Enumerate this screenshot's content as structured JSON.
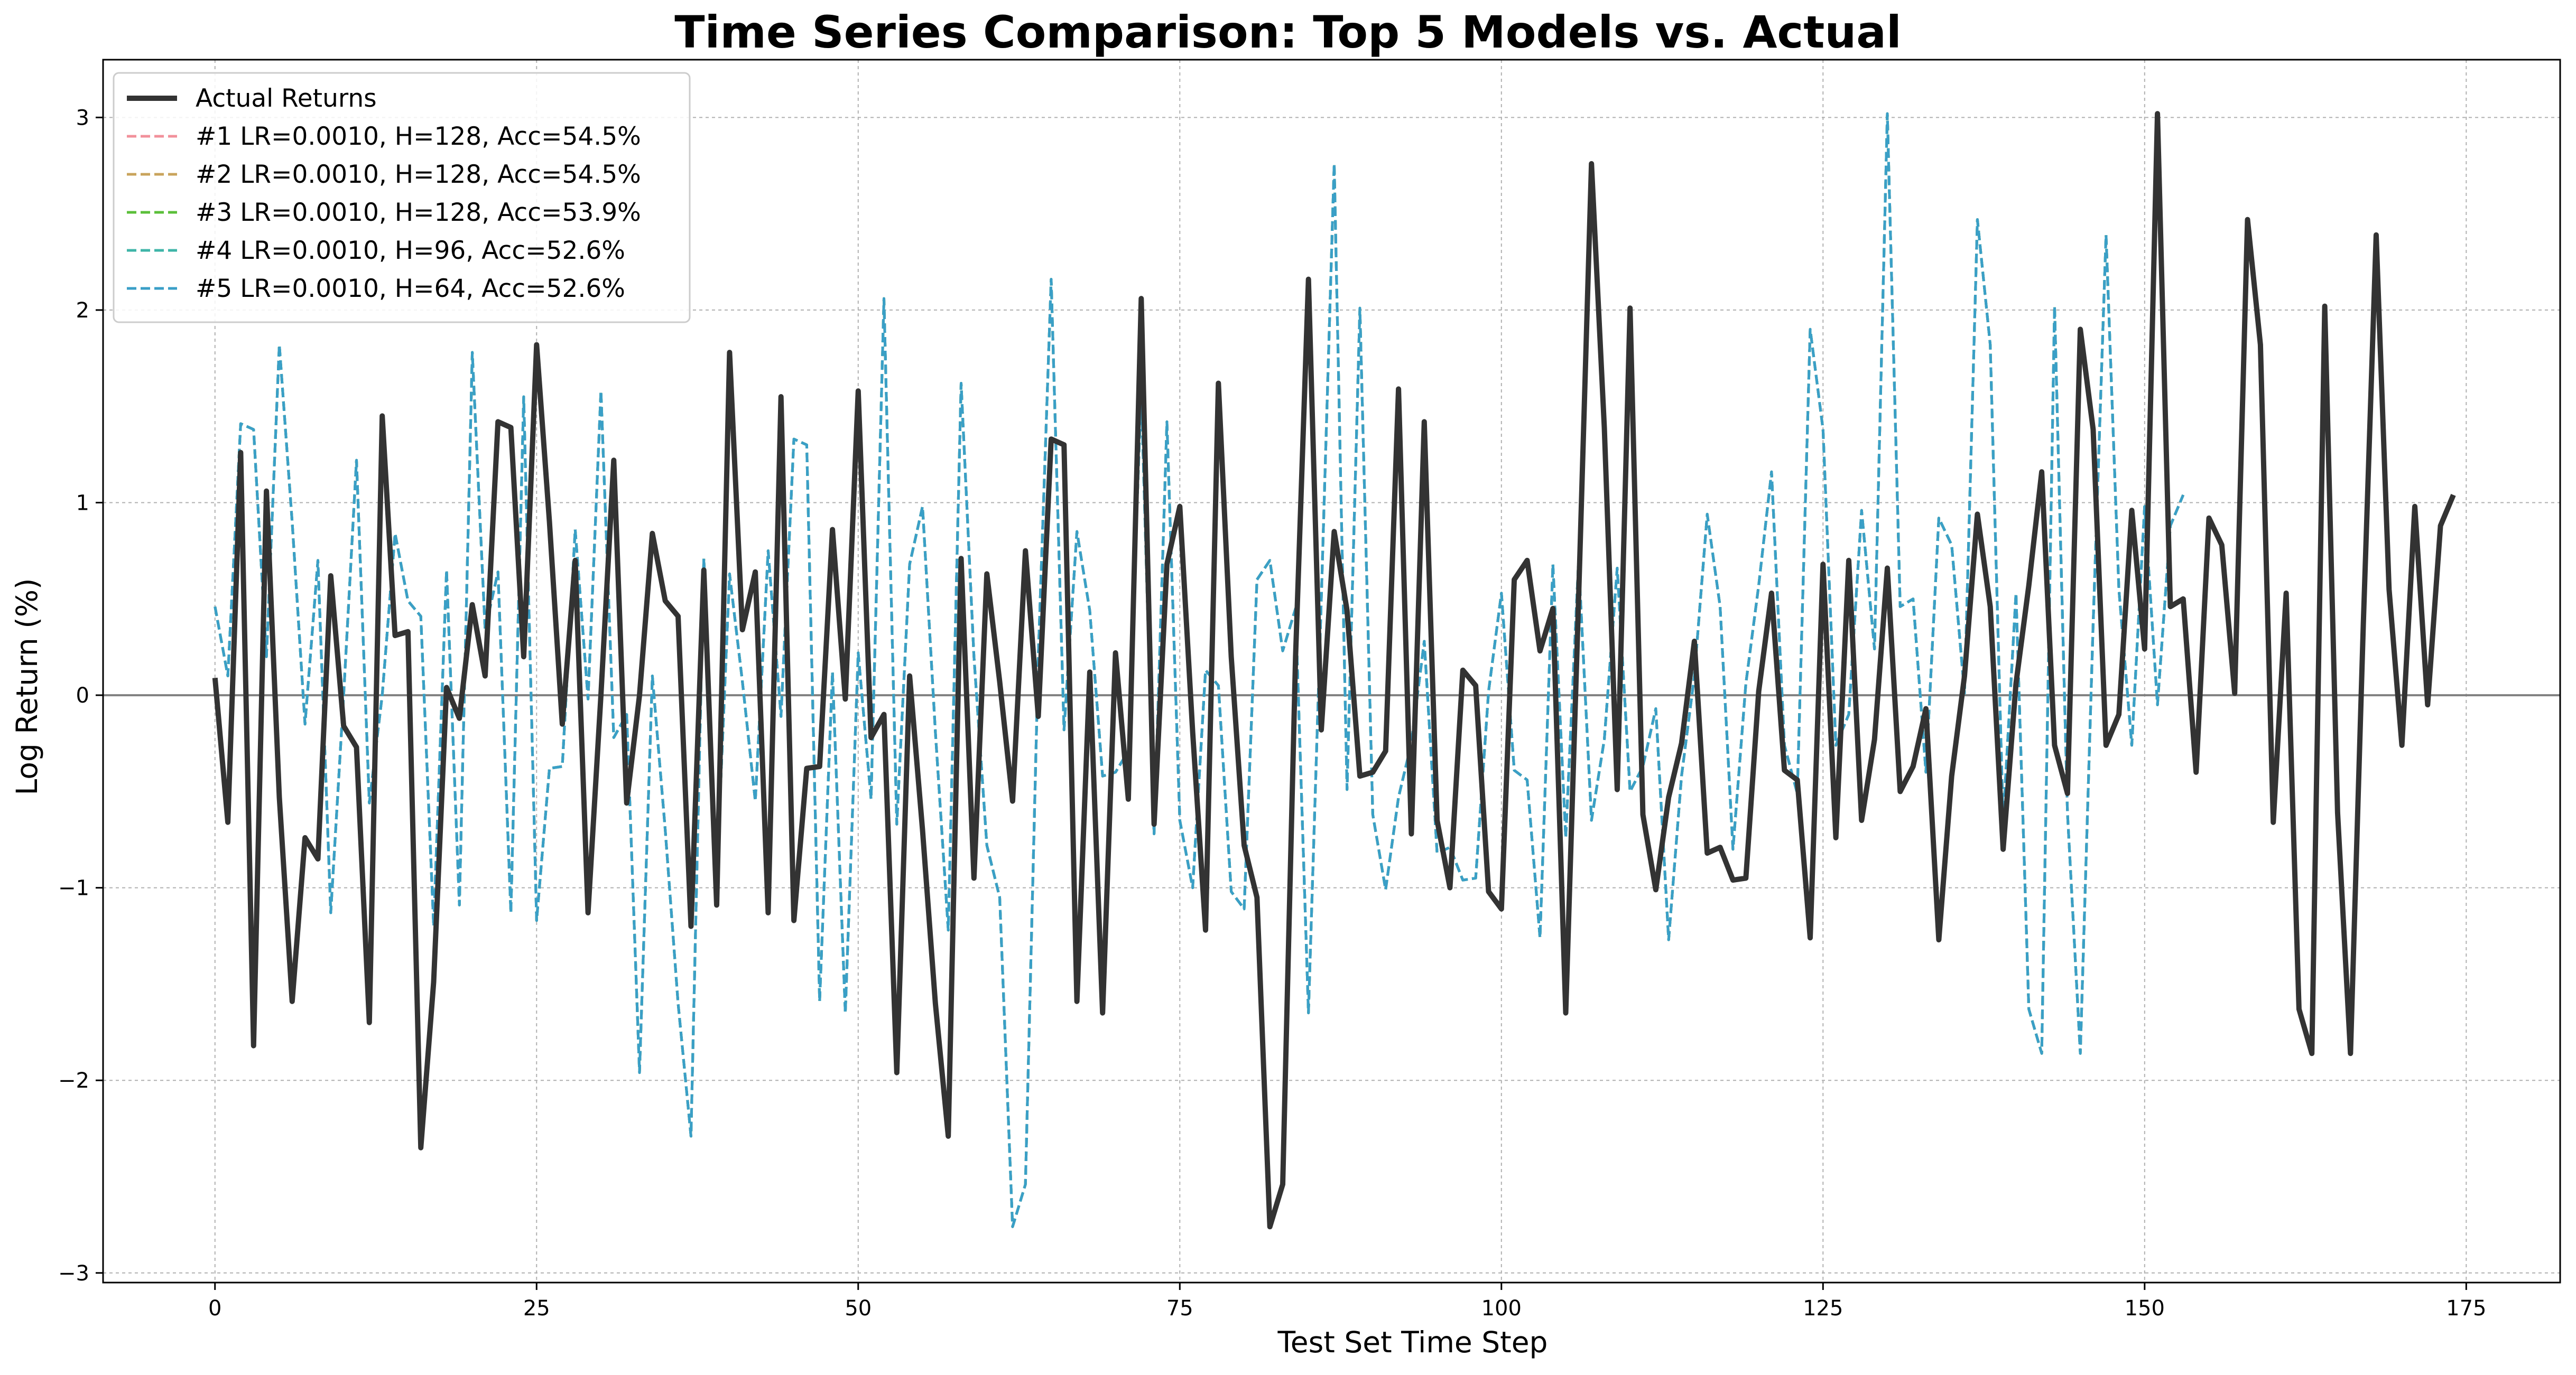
{
  "chart_data": {
    "type": "line",
    "title": "Time Series Comparison: Top 5 Models vs. Actual",
    "xlabel": "Test Set Time Step",
    "ylabel": "Log Return (%)",
    "xlim": [
      -8.7,
      182.3
    ],
    "ylim": [
      -3.05,
      3.3
    ],
    "xticks": [
      0,
      25,
      50,
      75,
      100,
      125,
      150,
      175
    ],
    "yticks": [
      -3,
      -2,
      -1,
      0,
      1,
      2,
      3
    ],
    "ytick_labels": [
      "−3",
      "−2",
      "−1",
      "0",
      "1",
      "2",
      "3"
    ],
    "grid": true,
    "zero_line": true,
    "legend_position": "top-left",
    "series": [
      {
        "name": "Actual Returns",
        "style": "solid",
        "color": "#333333",
        "x_start": 0,
        "values": [
          0.09,
          -0.66,
          1.26,
          -1.82,
          1.06,
          -0.53,
          -1.59,
          -0.74,
          -0.85,
          0.62,
          -0.16,
          -0.27,
          -1.7,
          1.45,
          0.31,
          0.33,
          -2.35,
          -1.49,
          0.04,
          -0.12,
          0.47,
          0.1,
          1.42,
          1.39,
          0.2,
          1.82,
          0.9,
          -0.15,
          0.7,
          -1.13,
          0.0,
          1.22,
          -0.56,
          0.0,
          0.84,
          0.49,
          0.41,
          -1.2,
          0.65,
          -1.09,
          1.78,
          0.34,
          0.64,
          -1.13,
          1.55,
          -1.17,
          -0.38,
          -0.37,
          0.86,
          -0.02,
          1.58,
          -0.22,
          -0.1,
          -1.96,
          0.1,
          -0.7,
          -1.6,
          -2.29,
          0.71,
          -0.95,
          0.63,
          0.07,
          -0.55,
          0.75,
          -0.11,
          1.33,
          1.3,
          -1.59,
          0.12,
          -1.65,
          0.22,
          -0.54,
          2.06,
          -0.67,
          0.68,
          0.98,
          -0.19,
          -1.22,
          1.62,
          0.2,
          -0.78,
          -1.05,
          -2.76,
          -2.54,
          0.2,
          2.16,
          -0.18,
          0.85,
          0.44,
          -0.42,
          -0.4,
          -0.29,
          1.59,
          -0.72,
          1.42,
          -0.65,
          -1.0,
          0.13,
          0.05,
          -1.02,
          -1.11,
          0.6,
          0.7,
          0.23,
          0.45,
          -1.65,
          0.5,
          2.76,
          1.39,
          -0.49,
          2.01,
          -0.62,
          -1.01,
          -0.53,
          -0.25,
          0.28,
          -0.82,
          -0.79,
          -0.96,
          -0.95,
          0.02,
          0.53,
          -0.39,
          -0.44,
          -1.26,
          0.68,
          -0.74,
          0.7,
          -0.65,
          -0.23,
          0.66,
          -0.5,
          -0.37,
          -0.07,
          -1.27,
          -0.42,
          0.1,
          0.94,
          0.46,
          -0.8,
          0.06,
          0.57,
          1.16,
          -0.26,
          -0.51,
          1.9,
          1.38,
          -0.26,
          -0.1,
          0.96,
          0.24,
          3.02,
          0.46,
          0.5,
          -0.4,
          0.92,
          0.78,
          0.01,
          2.47,
          1.82,
          -0.66,
          0.53,
          -1.63,
          -1.86,
          2.02,
          -0.61,
          -1.86,
          0.37,
          2.39,
          0.55,
          -0.26,
          0.98,
          -0.05,
          0.88,
          1.04
        ]
      },
      {
        "name": "#1 LR=0.0010, H=128, Acc=54.5%",
        "style": "dashed",
        "color": "#f2909b",
        "x_start": 0,
        "values": [
          0.46,
          0.1,
          1.41,
          1.38,
          0.2,
          1.82,
          0.9,
          -0.15,
          0.7,
          -1.13,
          0.0,
          1.22,
          -0.56,
          0.0,
          0.84,
          0.49,
          0.41,
          -1.2,
          0.65,
          -1.09,
          1.78,
          0.34,
          0.64,
          -1.13,
          1.55,
          -1.17,
          -0.38,
          -0.37,
          0.86,
          -0.02,
          1.58,
          -0.22,
          -0.1,
          -1.96,
          0.1,
          -0.7,
          -1.6,
          -2.29,
          0.71,
          -0.95,
          0.63,
          0.07,
          -0.55,
          0.75,
          -0.11,
          1.33,
          1.3,
          -1.59,
          0.12,
          -1.65,
          0.22,
          -0.54,
          2.06,
          -0.67,
          0.68,
          0.98,
          -0.19,
          -1.22,
          1.62,
          0.2,
          -0.78,
          -1.05,
          -2.76,
          -2.54,
          0.2,
          2.16,
          -0.18,
          0.85,
          0.44,
          -0.42,
          -0.4,
          -0.29,
          1.59,
          -0.72,
          1.42,
          -0.65,
          -1.0,
          0.13,
          0.05,
          -1.02,
          -1.11,
          0.6,
          0.7,
          0.23,
          0.45,
          -1.65,
          0.5,
          2.76,
          -0.49,
          2.01,
          -0.62,
          -1.01,
          -0.53,
          -0.25,
          0.28,
          -0.82,
          -0.79,
          -0.96,
          -0.95,
          0.02,
          0.53,
          -0.39,
          -0.44,
          -1.26,
          0.68,
          -0.74,
          0.7,
          -0.65,
          -0.23,
          0.66,
          -0.5,
          -0.37,
          -0.07,
          -1.27,
          -0.42,
          0.1,
          0.94,
          0.46,
          -0.8,
          0.06,
          0.57,
          1.16,
          -0.26,
          -0.51,
          1.9,
          1.38,
          -0.26,
          -0.1,
          0.96,
          0.24,
          3.02,
          0.46,
          0.5,
          -0.4,
          0.92,
          0.78,
          0.01,
          2.47,
          1.82,
          -0.66,
          0.53,
          -1.63,
          -1.86,
          2.02,
          -0.61,
          -1.86,
          0.37,
          2.39,
          0.55,
          -0.26,
          0.98,
          -0.05,
          0.88,
          1.04
        ]
      },
      {
        "name": "#2 LR=0.0010, H=128, Acc=54.5%",
        "style": "dashed",
        "color": "#c9a45c",
        "x_start": 0,
        "values": [
          0.46,
          0.1,
          1.41,
          1.38,
          0.2,
          1.82,
          0.9,
          -0.15,
          0.7,
          -1.13,
          0.0,
          1.22,
          -0.56,
          0.0,
          0.84,
          0.49,
          0.41,
          -1.2,
          0.65,
          -1.09,
          1.78,
          0.34,
          0.64,
          -1.13,
          1.55,
          -1.17,
          -0.38,
          -0.37,
          0.86,
          -0.02,
          1.58,
          -0.22,
          -0.1,
          -1.96,
          0.1,
          -0.7,
          -1.6,
          -2.29,
          0.71,
          -0.95,
          0.63,
          0.07,
          -0.55,
          0.75,
          -0.11,
          1.33,
          1.3,
          -1.59,
          0.12,
          -1.65,
          0.22,
          -0.54,
          2.06,
          -0.67,
          0.68,
          0.98,
          -0.19,
          -1.22,
          1.62,
          0.2,
          -0.78,
          -1.05,
          -2.76,
          -2.54,
          0.2,
          2.16,
          -0.18,
          0.85,
          0.44,
          -0.42,
          -0.4,
          -0.29,
          1.59,
          -0.72,
          1.42,
          -0.65,
          -1.0,
          0.13,
          0.05,
          -1.02,
          -1.11,
          0.6,
          0.7,
          0.23,
          0.45,
          -1.65,
          0.5,
          2.76,
          -0.49,
          2.01,
          -0.62,
          -1.01,
          -0.53,
          -0.25,
          0.28,
          -0.82,
          -0.79,
          -0.96,
          -0.95,
          0.02,
          0.53,
          -0.39,
          -0.44,
          -1.26,
          0.68,
          -0.74,
          0.7,
          -0.65,
          -0.23,
          0.66,
          -0.5,
          -0.37,
          -0.07,
          -1.27,
          -0.42,
          0.1,
          0.94,
          0.46,
          -0.8,
          0.06,
          0.57,
          1.16,
          -0.26,
          -0.51,
          1.9,
          1.38,
          -0.26,
          -0.1,
          0.96,
          0.24,
          3.02,
          0.46,
          0.5,
          -0.4,
          0.92,
          0.78,
          0.01,
          2.47,
          1.82,
          -0.66,
          0.53,
          -1.63,
          -1.86,
          2.02,
          -0.61,
          -1.86,
          0.37,
          2.39,
          0.55,
          -0.26,
          0.98,
          -0.05,
          0.88,
          1.04
        ]
      },
      {
        "name": "#3 LR=0.0010, H=128, Acc=53.9%",
        "style": "dashed",
        "color": "#5bbf3a",
        "x_start": 0,
        "values": [
          0.46,
          0.1,
          1.41,
          1.38,
          0.2,
          1.82,
          0.9,
          -0.15,
          0.7,
          -1.13,
          0.0,
          1.22,
          -0.56,
          0.0,
          0.84,
          0.49,
          0.41,
          -1.2,
          0.65,
          -1.09,
          1.78,
          0.34,
          0.64,
          -1.13,
          1.55,
          -1.17,
          -0.38,
          -0.37,
          0.86,
          -0.02,
          1.58,
          -0.22,
          -0.1,
          -1.96,
          0.1,
          -0.7,
          -1.6,
          -2.29,
          0.71,
          -0.95,
          0.63,
          0.07,
          -0.55,
          0.75,
          -0.11,
          1.33,
          1.3,
          -1.59,
          0.12,
          -1.65,
          0.22,
          -0.54,
          2.06,
          -0.67,
          0.68,
          0.98,
          -0.19,
          -1.22,
          1.62,
          0.2,
          -0.78,
          -1.05,
          -2.76,
          -2.54,
          0.2,
          2.16,
          -0.18,
          0.85,
          0.44,
          -0.42,
          -0.4,
          -0.29,
          1.59,
          -0.72,
          1.42,
          -0.65,
          -1.0,
          0.13,
          0.05,
          -1.02,
          -1.11,
          0.6,
          0.7,
          0.23,
          0.45,
          -1.65,
          0.5,
          2.76,
          -0.49,
          2.01,
          -0.62,
          -1.01,
          -0.53,
          -0.25,
          0.28,
          -0.82,
          -0.79,
          -0.96,
          -0.95,
          0.02,
          0.53,
          -0.39,
          -0.44,
          -1.26,
          0.68,
          -0.74,
          0.7,
          -0.65,
          -0.23,
          0.66,
          -0.5,
          -0.37,
          -0.07,
          -1.27,
          -0.42,
          0.1,
          0.94,
          0.46,
          -0.8,
          0.06,
          0.57,
          1.16,
          -0.26,
          -0.51,
          1.9,
          1.38,
          -0.26,
          -0.1,
          0.96,
          0.24,
          3.02,
          0.46,
          0.5,
          -0.4,
          0.92,
          0.78,
          0.01,
          2.47,
          1.82,
          -0.66,
          0.53,
          -1.63,
          -1.86,
          2.02,
          -0.61,
          -1.86,
          0.37,
          2.39,
          0.55,
          -0.26,
          0.98,
          -0.05,
          0.88,
          1.04
        ]
      },
      {
        "name": "#4 LR=0.0010, H=96, Acc=52.6%",
        "style": "dashed",
        "color": "#3fb5a8",
        "x_start": 0,
        "values": [
          0.46,
          0.1,
          1.41,
          1.38,
          0.2,
          1.82,
          0.9,
          -0.15,
          0.7,
          -1.13,
          0.0,
          1.22,
          -0.56,
          0.0,
          0.84,
          0.49,
          0.41,
          -1.2,
          0.65,
          -1.09,
          1.78,
          0.34,
          0.64,
          -1.13,
          1.55,
          -1.17,
          -0.38,
          -0.37,
          0.86,
          -0.02,
          1.58,
          -0.22,
          -0.1,
          -1.96,
          0.1,
          -0.7,
          -1.6,
          -2.29,
          0.71,
          -0.95,
          0.63,
          0.07,
          -0.55,
          0.75,
          -0.11,
          1.33,
          1.3,
          -1.59,
          0.12,
          -1.65,
          0.22,
          -0.54,
          2.06,
          -0.67,
          0.68,
          0.98,
          -0.19,
          -1.22,
          1.62,
          0.2,
          -0.78,
          -1.05,
          -2.76,
          -2.54,
          0.2,
          2.16,
          -0.18,
          0.85,
          0.44,
          -0.42,
          -0.4,
          -0.29,
          1.59,
          -0.72,
          1.42,
          -0.65,
          -1.0,
          0.13,
          0.05,
          -1.02,
          -1.11,
          0.6,
          0.7,
          0.23,
          0.45,
          -1.65,
          0.5,
          2.76,
          -0.49,
          2.01,
          -0.62,
          -1.01,
          -0.53,
          -0.25,
          0.28,
          -0.82,
          -0.79,
          -0.96,
          -0.95,
          0.02,
          0.53,
          -0.39,
          -0.44,
          -1.26,
          0.68,
          -0.74,
          0.7,
          -0.65,
          -0.23,
          0.66,
          -0.5,
          -0.37,
          -0.07,
          -1.27,
          -0.42,
          0.1,
          0.94,
          0.46,
          -0.8,
          0.06,
          0.57,
          1.16,
          -0.26,
          -0.51,
          1.9,
          1.38,
          -0.26,
          -0.1,
          0.96,
          0.24,
          3.02,
          0.46,
          0.5,
          -0.4,
          0.92,
          0.78,
          0.01,
          2.47,
          1.82,
          -0.66,
          0.53,
          -1.63,
          -1.86,
          2.02,
          -0.61,
          -1.86,
          0.37,
          2.39,
          0.55,
          -0.26,
          0.98,
          -0.05,
          0.88,
          1.04
        ]
      },
      {
        "name": "#5 LR=0.0010, H=64, Acc=52.6%",
        "style": "dashed",
        "color": "#3a9fc7",
        "x_start": 0,
        "values": [
          0.46,
          0.1,
          1.41,
          1.38,
          0.2,
          1.82,
          0.9,
          -0.15,
          0.7,
          -1.13,
          0.0,
          1.22,
          -0.56,
          0.0,
          0.84,
          0.49,
          0.41,
          -1.2,
          0.65,
          -1.09,
          1.78,
          0.34,
          0.64,
          -1.13,
          1.55,
          -1.17,
          -0.38,
          -0.37,
          0.86,
          -0.02,
          1.58,
          -0.22,
          -0.1,
          -1.96,
          0.1,
          -0.7,
          -1.6,
          -2.29,
          0.71,
          -0.95,
          0.63,
          0.07,
          -0.55,
          0.75,
          -0.11,
          1.33,
          1.3,
          -1.59,
          0.12,
          -1.65,
          0.22,
          -0.54,
          2.06,
          -0.67,
          0.68,
          0.98,
          -0.19,
          -1.22,
          1.62,
          0.2,
          -0.78,
          -1.05,
          -2.76,
          -2.54,
          0.2,
          2.16,
          -0.18,
          0.85,
          0.44,
          -0.42,
          -0.4,
          -0.29,
          1.59,
          -0.72,
          1.42,
          -0.65,
          -1.0,
          0.13,
          0.05,
          -1.02,
          -1.11,
          0.6,
          0.7,
          0.23,
          0.45,
          -1.65,
          0.5,
          2.76,
          -0.49,
          2.01,
          -0.62,
          -1.01,
          -0.53,
          -0.25,
          0.28,
          -0.82,
          -0.79,
          -0.96,
          -0.95,
          0.02,
          0.53,
          -0.39,
          -0.44,
          -1.26,
          0.68,
          -0.74,
          0.7,
          -0.65,
          -0.23,
          0.66,
          -0.5,
          -0.37,
          -0.07,
          -1.27,
          -0.42,
          0.1,
          0.94,
          0.46,
          -0.8,
          0.06,
          0.57,
          1.16,
          -0.26,
          -0.51,
          1.9,
          1.38,
          -0.26,
          -0.1,
          0.96,
          0.24,
          3.02,
          0.46,
          0.5,
          -0.4,
          0.92,
          0.78,
          0.01,
          2.47,
          1.82,
          -0.66,
          0.53,
          -1.63,
          -1.86,
          2.02,
          -0.61,
          -1.86,
          0.37,
          2.39,
          0.55,
          -0.26,
          0.98,
          -0.05,
          0.88,
          1.04
        ]
      }
    ]
  }
}
